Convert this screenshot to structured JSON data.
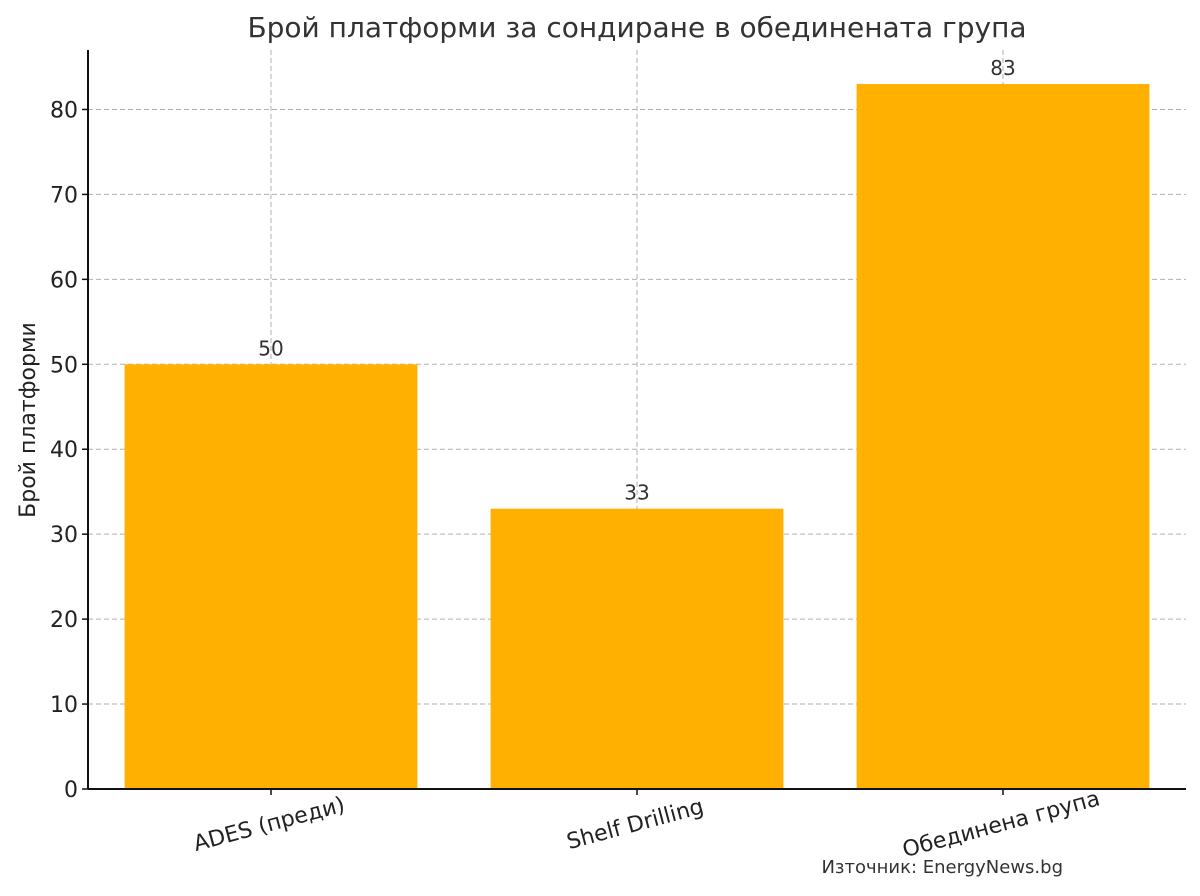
{
  "chart_data": {
    "type": "bar",
    "title": "Брой платформи за сондиране в обединената група",
    "xlabel": "",
    "ylabel": "Брой платформи",
    "categories": [
      "ADES (преди)",
      "Shelf Drilling",
      "Обединена група"
    ],
    "values": [
      50,
      33,
      83
    ],
    "ylim": [
      0,
      87
    ],
    "yticks": [
      0,
      10,
      20,
      30,
      40,
      50,
      60,
      70,
      80
    ],
    "grid": true,
    "bar_color": "#FFB000",
    "xtick_rotation_deg": -15,
    "source_note": "Източник: EnergyNews.bg"
  }
}
